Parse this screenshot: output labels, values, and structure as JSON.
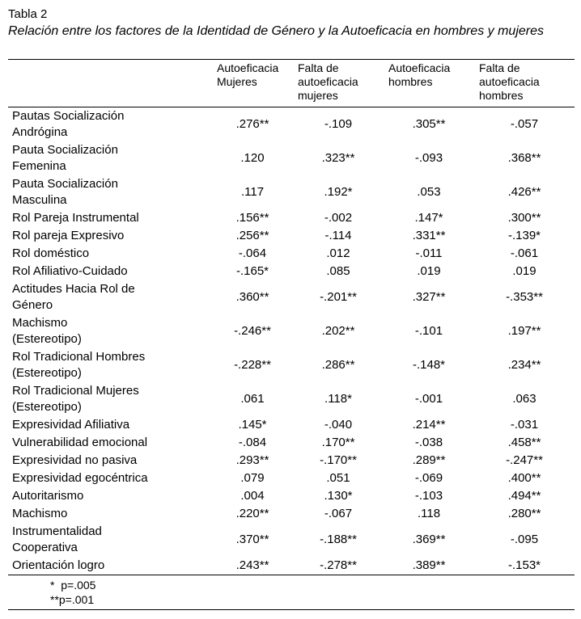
{
  "title": "Tabla 2",
  "subtitle": "Relación entre los factores de la Identidad de Género y  la Autoeficacia en hombres y mujeres",
  "table": {
    "columns": [
      "Autoeficacia\nMujeres",
      "Falta de\nautoeficacia\nmujeres",
      "Autoeficacia\nhombres",
      "Falta de\nautoeficacia\nhombres"
    ],
    "rows": [
      {
        "label": "Pautas Socialización\nAndrógina",
        "values": [
          ".276**",
          "-.109",
          ".305**",
          "-.057"
        ]
      },
      {
        "label": "Pauta Socialización\nFemenina",
        "values": [
          ".120",
          ".323**",
          "-.093",
          ".368**"
        ]
      },
      {
        "label": "Pauta Socialización\nMasculina",
        "values": [
          ".117",
          ".192*",
          ".053",
          ".426**"
        ]
      },
      {
        "label": "Rol Pareja Instrumental",
        "values": [
          ".156**",
          "-.002",
          ".147*",
          ".300**"
        ]
      },
      {
        "label": "Rol pareja Expresivo",
        "values": [
          ".256**",
          "-.114",
          ".331**",
          "-.139*"
        ]
      },
      {
        "label": "Rol doméstico",
        "values": [
          "-.064",
          ".012",
          "-.011",
          "-.061"
        ]
      },
      {
        "label": "Rol Afiliativo-Cuidado",
        "values": [
          "-.165*",
          ".085",
          ".019",
          ".019"
        ]
      },
      {
        "label": "Actitudes Hacia Rol de\nGénero",
        "values": [
          ".360**",
          "-.201**",
          ".327**",
          "-.353**"
        ]
      },
      {
        "label": "Machismo\n(Estereotipo)",
        "values": [
          "-.246**",
          ".202**",
          "-.101",
          ".197**"
        ]
      },
      {
        "label": "Rol Tradicional Hombres\n(Estereotipo)",
        "values": [
          "-.228**",
          ".286**",
          "-.148*",
          ".234**"
        ]
      },
      {
        "label": "Rol Tradicional Mujeres\n(Estereotipo)",
        "values": [
          ".061",
          ".118*",
          "-.001",
          ".063"
        ]
      },
      {
        "label": "Expresividad Afiliativa",
        "values": [
          ".145*",
          "-.040",
          ".214**",
          "-.031"
        ]
      },
      {
        "label": "Vulnerabilidad emocional",
        "values": [
          "-.084",
          ".170**",
          "-.038",
          ".458**"
        ]
      },
      {
        "label": "Expresividad no pasiva",
        "values": [
          ".293**",
          "-.170**",
          ".289**",
          "-.247**"
        ]
      },
      {
        "label": "Expresividad egocéntrica",
        "values": [
          ".079",
          ".051",
          "-.069",
          ".400**"
        ]
      },
      {
        "label": "Autoritarismo",
        "values": [
          ".004",
          ".130*",
          "-.103",
          ".494**"
        ]
      },
      {
        "label": "Machismo",
        "values": [
          ".220**",
          "-.067",
          ".118",
          ".280**"
        ]
      },
      {
        "label": "Instrumentalidad\nCooperativa",
        "values": [
          ".370**",
          "-.188**",
          ".369**",
          "-.095"
        ]
      },
      {
        "label": "Orientación logro",
        "values": [
          ".243**",
          "-.278**",
          ".389**",
          "-.153*"
        ]
      }
    ]
  },
  "footnotes": [
    "*  p=.005",
    "**p=.001"
  ]
}
